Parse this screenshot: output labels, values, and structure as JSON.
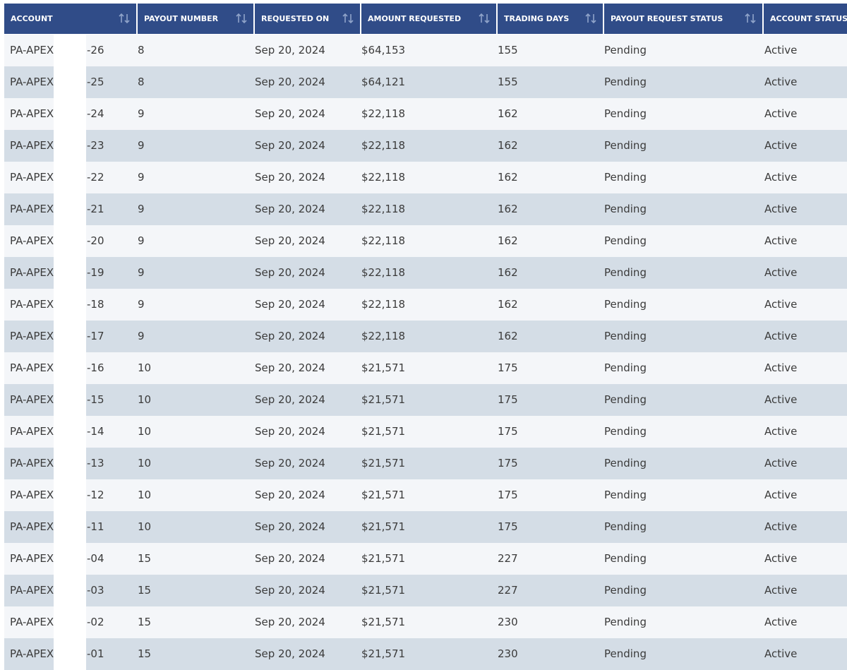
{
  "table": {
    "header": [
      "ACCOUNT",
      "PAYOUT NUMBER",
      "REQUESTED ON",
      "AMOUNT REQUESTED",
      "TRADING DAYS",
      "PAYOUT REQUEST STATUS",
      "ACCOUNT STATUS"
    ],
    "rows": [
      [
        "PA-APEX-",
        "-26",
        "8",
        "Sep 20, 2024",
        "$64,153",
        "155",
        "Pending",
        "Active"
      ],
      [
        "PA-APEX-",
        "-25",
        "8",
        "Sep 20, 2024",
        "$64,121",
        "155",
        "Pending",
        "Active"
      ],
      [
        "PA-APEX-",
        "-24",
        "9",
        "Sep 20, 2024",
        "$22,118",
        "162",
        "Pending",
        "Active"
      ],
      [
        "PA-APEX-",
        "-23",
        "9",
        "Sep 20, 2024",
        "$22,118",
        "162",
        "Pending",
        "Active"
      ],
      [
        "PA-APEX-",
        "-22",
        "9",
        "Sep 20, 2024",
        "$22,118",
        "162",
        "Pending",
        "Active"
      ],
      [
        "PA-APEX-",
        "-21",
        "9",
        "Sep 20, 2024",
        "$22,118",
        "162",
        "Pending",
        "Active"
      ],
      [
        "PA-APEX-",
        "-20",
        "9",
        "Sep 20, 2024",
        "$22,118",
        "162",
        "Pending",
        "Active"
      ],
      [
        "PA-APEX-",
        "-19",
        "9",
        "Sep 20, 2024",
        "$22,118",
        "162",
        "Pending",
        "Active"
      ],
      [
        "PA-APEX-",
        "-18",
        "9",
        "Sep 20, 2024",
        "$22,118",
        "162",
        "Pending",
        "Active"
      ],
      [
        "PA-APEX-",
        "-17",
        "9",
        "Sep 20, 2024",
        "$22,118",
        "162",
        "Pending",
        "Active"
      ],
      [
        "PA-APEX-",
        "-16",
        "10",
        "Sep 20, 2024",
        "$21,571",
        "175",
        "Pending",
        "Active"
      ],
      [
        "PA-APEX-",
        "-15",
        "10",
        "Sep 20, 2024",
        "$21,571",
        "175",
        "Pending",
        "Active"
      ],
      [
        "PA-APEX-",
        "-14",
        "10",
        "Sep 20, 2024",
        "$21,571",
        "175",
        "Pending",
        "Active"
      ],
      [
        "PA-APEX-",
        "-13",
        "10",
        "Sep 20, 2024",
        "$21,571",
        "175",
        "Pending",
        "Active"
      ],
      [
        "PA-APEX-",
        "-12",
        "10",
        "Sep 20, 2024",
        "$21,571",
        "175",
        "Pending",
        "Active"
      ],
      [
        "PA-APEX-",
        "-11",
        "10",
        "Sep 20, 2024",
        "$21,571",
        "175",
        "Pending",
        "Active"
      ],
      [
        "PA-APEX-",
        "-04",
        "15",
        "Sep 20, 2024",
        "$21,571",
        "227",
        "Pending",
        "Active"
      ],
      [
        "PA-APEX-",
        "-03",
        "15",
        "Sep 20, 2024",
        "$21,571",
        "227",
        "Pending",
        "Active"
      ],
      [
        "PA-APEX-",
        "-02",
        "15",
        "Sep 20, 2024",
        "$21,571",
        "230",
        "Pending",
        "Active"
      ],
      [
        "PA-APEX-",
        "-01",
        "15",
        "Sep 20, 2024",
        "$21,571",
        "230",
        "Pending",
        "Active"
      ]
    ]
  }
}
